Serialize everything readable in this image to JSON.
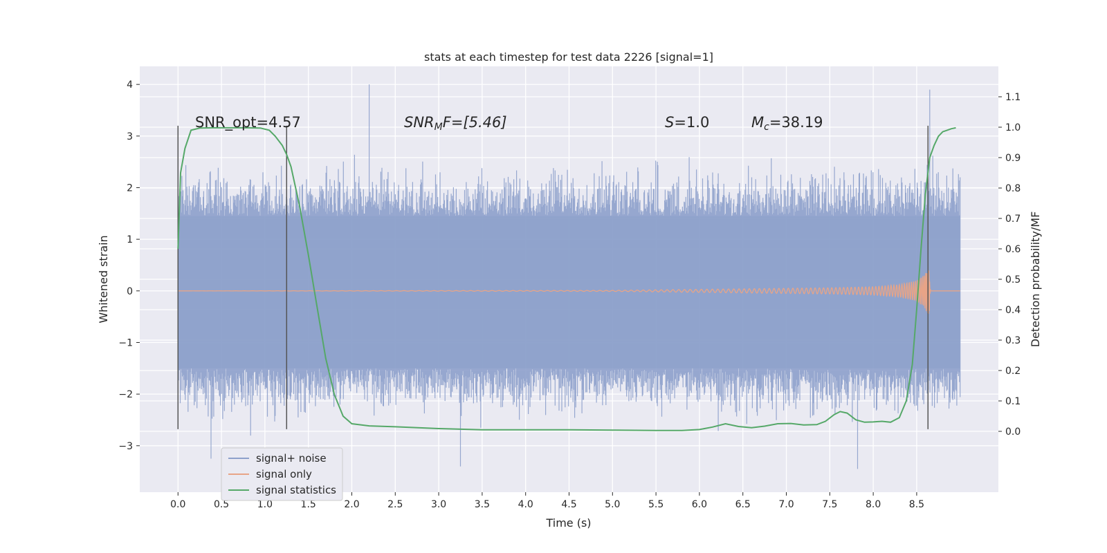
{
  "chart_data": {
    "type": "line",
    "title": "stats at each timestep for test data 2226 [signal=1]",
    "xlabel": "Time (s)",
    "ylabel_left": "Whitened strain",
    "ylabel_right": "Detection probability/MF",
    "xlim": [
      -0.44,
      9.44
    ],
    "ylim_left": [
      -3.9,
      4.35
    ],
    "ylim_right": [
      -0.2,
      1.2
    ],
    "x_ticks": [
      "0.0",
      "0.5",
      "1.0",
      "1.5",
      "2.0",
      "2.5",
      "3.0",
      "3.5",
      "4.0",
      "4.5",
      "5.0",
      "5.5",
      "6.0",
      "6.5",
      "7.0",
      "7.5",
      "8.0",
      "8.5"
    ],
    "y_ticks_left": [
      "−3",
      "−2",
      "−1",
      "0",
      "1",
      "2",
      "3",
      "4"
    ],
    "y_ticks_right": [
      "0.0",
      "0.1",
      "0.2",
      "0.3",
      "0.4",
      "0.5",
      "0.6",
      "0.7",
      "0.8",
      "0.9",
      "1.0",
      "1.1"
    ],
    "grid": true,
    "legend_position": "bottom-left",
    "annotations": [
      {
        "text": "SNR_opt=4.57",
        "x": 0.2,
        "y": 3.3
      },
      {
        "text": "SNR_M F=[5.46]",
        "x": 2.6,
        "y": 3.3
      },
      {
        "text": "S=1.0",
        "x": 5.6,
        "y": 3.3
      },
      {
        "text": "M_c=38.19",
        "x": 6.6,
        "y": 3.3
      }
    ],
    "vlines": [
      {
        "x": 0.0,
        "y_range": [
          -2.68,
          3.2
        ]
      },
      {
        "x": 1.25,
        "y_range": [
          -2.68,
          3.2
        ]
      },
      {
        "x": 8.63,
        "y_range": [
          -2.68,
          3.2
        ]
      }
    ],
    "series": [
      {
        "name": "signal+ noise",
        "color": "#8da0cb",
        "axis": "left",
        "x_range": [
          0.0,
          9.0
        ],
        "envelope": {
          "typical_low": -1.5,
          "typical_high": 1.45,
          "min": -3.45,
          "max": 4.0
        },
        "notable_peaks": [
          {
            "x": 2.2,
            "y": 4.0
          },
          {
            "x": 8.65,
            "y": 3.9
          },
          {
            "x": 0.38,
            "y": -3.25
          },
          {
            "x": 3.25,
            "y": -3.4
          },
          {
            "x": 7.82,
            "y": -3.45
          }
        ]
      },
      {
        "name": "signal only",
        "color": "#e8a487",
        "axis": "left",
        "x": [
          0.0,
          5.0,
          6.0,
          7.0,
          7.5,
          8.0,
          8.3,
          8.5,
          8.6,
          8.64,
          8.66,
          9.0
        ],
        "amplitude": [
          0.0,
          0.01,
          0.03,
          0.05,
          0.06,
          0.08,
          0.12,
          0.2,
          0.35,
          0.55,
          0.0,
          0.0
        ]
      },
      {
        "name": "signal statistics",
        "color": "#55a868",
        "axis": "right",
        "x": [
          0.0,
          0.03,
          0.08,
          0.15,
          0.25,
          0.4,
          0.6,
          0.8,
          0.95,
          1.05,
          1.12,
          1.2,
          1.25,
          1.3,
          1.4,
          1.5,
          1.6,
          1.7,
          1.8,
          1.9,
          2.0,
          2.2,
          2.5,
          3.0,
          3.5,
          4.0,
          4.5,
          5.0,
          5.5,
          5.8,
          6.0,
          6.15,
          6.3,
          6.45,
          6.6,
          6.75,
          6.9,
          7.05,
          7.2,
          7.35,
          7.45,
          7.55,
          7.62,
          7.7,
          7.8,
          7.9,
          8.0,
          8.1,
          8.2,
          8.3,
          8.38,
          8.45,
          8.5,
          8.55,
          8.6,
          8.65,
          8.7,
          8.75,
          8.8,
          8.85,
          8.9,
          8.95
        ],
        "y": [
          0.6,
          0.85,
          0.93,
          0.99,
          0.997,
          0.998,
          0.998,
          0.998,
          0.997,
          0.99,
          0.97,
          0.94,
          0.91,
          0.87,
          0.74,
          0.58,
          0.41,
          0.24,
          0.12,
          0.05,
          0.025,
          0.018,
          0.015,
          0.009,
          0.005,
          0.005,
          0.005,
          0.004,
          0.003,
          0.003,
          0.006,
          0.014,
          0.025,
          0.016,
          0.012,
          0.017,
          0.025,
          0.026,
          0.021,
          0.022,
          0.033,
          0.055,
          0.065,
          0.06,
          0.038,
          0.03,
          0.031,
          0.033,
          0.03,
          0.045,
          0.1,
          0.22,
          0.4,
          0.6,
          0.78,
          0.9,
          0.94,
          0.97,
          0.985,
          0.99,
          0.995,
          0.998
        ]
      }
    ]
  },
  "legend": [
    {
      "label": "signal+ noise",
      "color": "#8da0cb"
    },
    {
      "label": "signal only",
      "color": "#e8a487"
    },
    {
      "label": "signal statistics",
      "color": "#55a868"
    }
  ],
  "annotation_labels": {
    "snr_opt": "SNR_opt=4.57",
    "snr_mf_base": "SNR",
    "snr_mf_sub": "M",
    "snr_mf_rest": "F=[5.46]",
    "s_label": "S",
    "s_rest": "=1.0",
    "mc_base": "M",
    "mc_sub": "c",
    "mc_rest": "=38.19"
  }
}
